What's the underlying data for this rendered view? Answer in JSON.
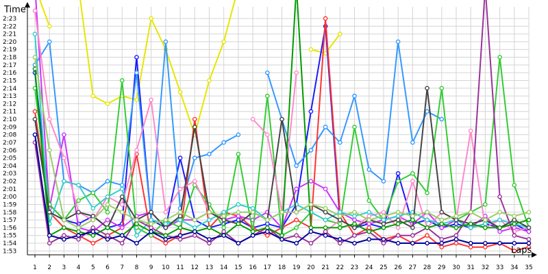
{
  "chart_data": {
    "type": "line",
    "title": "",
    "xlabel": "Laps",
    "ylabel": "Time",
    "x": [
      1,
      2,
      3,
      4,
      5,
      6,
      7,
      8,
      9,
      10,
      11,
      12,
      13,
      14,
      15,
      16,
      17,
      18,
      19,
      20,
      21,
      22,
      23,
      24,
      25,
      26,
      27,
      28,
      29,
      30,
      31,
      32,
      33,
      34,
      35
    ],
    "xlim": [
      1,
      35
    ],
    "ylim": [
      112.5,
      144.5
    ],
    "grid": true,
    "legend": "none",
    "y_ticks": [
      {
        "v": 113,
        "label": "1:53"
      },
      {
        "v": 114,
        "label": "1:54"
      },
      {
        "v": 115,
        "label": "1:55"
      },
      {
        "v": 116,
        "label": "1:56"
      },
      {
        "v": 117,
        "label": "1:57"
      },
      {
        "v": 118,
        "label": "1:58"
      },
      {
        "v": 119,
        "label": "1:59"
      },
      {
        "v": 120,
        "label": "2:00"
      },
      {
        "v": 121,
        "label": "2:01"
      },
      {
        "v": 122,
        "label": "2:02"
      },
      {
        "v": 123,
        "label": "2:03"
      },
      {
        "v": 124,
        "label": "2:04"
      },
      {
        "v": 125,
        "label": "2:05"
      },
      {
        "v": 126,
        "label": "2:06"
      },
      {
        "v": 127,
        "label": "2:07"
      },
      {
        "v": 128,
        "label": "2:08"
      },
      {
        "v": 129,
        "label": "2:09"
      },
      {
        "v": 130,
        "label": "2:10"
      },
      {
        "v": 131,
        "label": "2:11"
      },
      {
        "v": 132,
        "label": "2:12"
      },
      {
        "v": 133,
        "label": "2:13"
      },
      {
        "v": 134,
        "label": "2:14"
      },
      {
        "v": 135,
        "label": "2:15"
      },
      {
        "v": 136,
        "label": "2:16"
      },
      {
        "v": 137,
        "label": "2:17"
      },
      {
        "v": 138,
        "label": "2:18"
      },
      {
        "v": 139,
        "label": "2:19"
      },
      {
        "v": 140,
        "label": "2:20"
      },
      {
        "v": 141,
        "label": "2:21"
      },
      {
        "v": 142,
        "label": "2:22"
      },
      {
        "v": 143,
        "label": "2:23"
      }
    ],
    "series": [
      {
        "color": "#e6e600",
        "values": [
          150,
          142,
          null,
          160,
          133,
          132,
          133,
          132.5,
          143,
          139,
          133.5,
          128,
          135,
          140,
          147,
          null,
          null,
          null,
          null,
          139,
          138.5,
          141,
          null,
          null,
          null,
          null,
          null,
          null,
          null,
          null,
          null,
          null,
          null,
          null,
          null
        ]
      },
      {
        "color": "#1a1aff",
        "values": [
          136,
          119,
          117,
          116.5,
          117.5,
          116,
          116.5,
          138,
          117,
          116,
          125,
          117,
          116,
          116.5,
          117,
          116,
          116.5,
          116,
          119,
          131,
          142,
          117,
          116,
          116.5,
          116,
          123,
          116.5,
          117,
          116,
          116.5,
          116,
          116.5,
          116,
          116.5,
          115.5
        ]
      },
      {
        "color": "#3399ff",
        "values": [
          137,
          140,
          122,
          121.5,
          120.5,
          122,
          121.5,
          136,
          117,
          140,
          118.5,
          125,
          125.5,
          127,
          128,
          null,
          136,
          130,
          124,
          126,
          129,
          127,
          133,
          123.5,
          122,
          140,
          127,
          131,
          130,
          null,
          null,
          null,
          null,
          null,
          null
        ]
      },
      {
        "color": "#ff3333",
        "values": [
          131,
          118,
          116,
          115,
          114,
          115,
          116,
          125.5,
          115,
          114,
          115,
          130,
          116,
          118,
          117.5,
          116,
          115,
          116,
          117,
          116,
          143,
          118,
          115,
          116,
          114.5,
          115,
          114,
          115,
          113.5,
          114,
          113.5,
          113.5,
          114,
          113,
          113.5
        ]
      },
      {
        "color": "#cc33ff",
        "values": [
          155,
          118.5,
          128,
          116,
          115.5,
          117,
          116,
          117.5,
          118,
          116,
          117,
          117,
          118,
          117,
          117.5,
          117,
          118,
          116,
          121,
          122,
          121,
          118,
          117,
          116.5,
          117,
          117.5,
          116.5,
          118,
          116,
          117,
          116,
          117.5,
          115.5,
          116,
          115.5
        ]
      },
      {
        "color": "#33cc33",
        "values": [
          134,
          119,
          117,
          119.5,
          120.5,
          118,
          135,
          116,
          115,
          117,
          116,
          121.5,
          119,
          116,
          125.5,
          115.5,
          133,
          115,
          116,
          118,
          117,
          116.5,
          129,
          119.5,
          117,
          122,
          123,
          120.5,
          134,
          117,
          118,
          119,
          138,
          121.5,
          116
        ]
      },
      {
        "color": "#ff88cc",
        "values": [
          144,
          130,
          125,
          118,
          117,
          120,
          119,
          126,
          132.5,
          118,
          121,
          122,
          118,
          117,
          null,
          130,
          128,
          118,
          136,
          null,
          115.5,
          117,
          116,
          117.5,
          118,
          116,
          122,
          116,
          118,
          117,
          128.5,
          116,
          117,
          115.5,
          116
        ]
      },
      {
        "color": "#33cccc",
        "values": [
          141,
          116.5,
          122,
          121.5,
          118.5,
          120,
          121,
          115,
          117,
          116.5,
          117,
          116,
          117,
          118,
          119,
          118.5,
          117,
          118,
          119,
          118,
          117,
          118,
          117.5,
          118,
          117,
          117.5,
          118,
          117,
          116.5,
          117,
          116,
          116.5,
          117,
          116.5,
          116
        ]
      },
      {
        "color": "#444444",
        "values": [
          130,
          118,
          117,
          118,
          117.5,
          116,
          120,
          117,
          118,
          116,
          117.5,
          129,
          118,
          117,
          116.5,
          118,
          117,
          130,
          118,
          119,
          118,
          117,
          116,
          117,
          116.5,
          117,
          116,
          134,
          118,
          117,
          116.5,
          117,
          116,
          117,
          116
        ]
      },
      {
        "color": "#993399",
        "values": [
          127,
          114,
          115,
          114.5,
          116,
          115,
          114,
          117,
          116,
          115,
          114.5,
          115,
          114,
          115.5,
          114,
          115,
          116,
          114.5,
          115,
          114,
          115.5,
          114,
          115,
          115.5,
          114,
          115,
          115,
          116,
          114.5,
          115,
          118,
          147,
          120,
          115,
          114.5
        ]
      },
      {
        "color": "#009900",
        "values": [
          136.5,
          115,
          116,
          115.5,
          115,
          116,
          115,
          116.5,
          115.5,
          115,
          116,
          115.5,
          116,
          115,
          116.5,
          115.5,
          116,
          115,
          150,
          116,
          116,
          116,
          116.5,
          115.5,
          116,
          116.5,
          117,
          116,
          116.5,
          116,
          116.5,
          116,
          116,
          116.5,
          117
        ]
      },
      {
        "color": "#99cc66",
        "values": [
          138,
          126,
          117,
          116,
          117,
          119,
          118,
          117,
          116.5,
          117,
          118,
          117,
          118,
          117.5,
          118,
          118,
          117,
          118,
          118,
          119,
          118.5,
          117.5,
          118,
          117,
          117.5,
          118,
          117.5,
          118,
          117,
          117.5,
          118,
          117,
          118,
          117.5,
          118
        ]
      },
      {
        "color": "#000099",
        "values": [
          128,
          115,
          114.5,
          115,
          115.5,
          114.5,
          115,
          114,
          115.5,
          114.5,
          115,
          115.5,
          114.5,
          115,
          114,
          115,
          115.5,
          114.5,
          114,
          115.5,
          115,
          114.5,
          114,
          114.5,
          114.5,
          114,
          114,
          114,
          114,
          114.5,
          114,
          114,
          114,
          114,
          114
        ]
      }
    ]
  }
}
